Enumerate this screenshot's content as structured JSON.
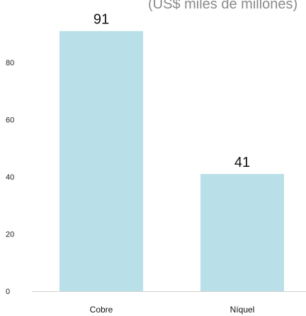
{
  "chart_data": {
    "type": "bar",
    "title": "",
    "subtitle": "(US$ miles de millones)",
    "categories": [
      "Cobre",
      "Níquel"
    ],
    "values": [
      91,
      41
    ],
    "data_labels": [
      "91",
      "41"
    ],
    "xlabel": "",
    "ylabel": "",
    "ylim": [
      0,
      100
    ],
    "yticks": [
      0,
      20,
      40,
      60,
      80
    ],
    "ytick_labels": [
      "0",
      "20",
      "40",
      "60",
      "80"
    ],
    "grid": false,
    "bar_color": "#b9dfe9",
    "axis_color": "#cfcfcf"
  }
}
